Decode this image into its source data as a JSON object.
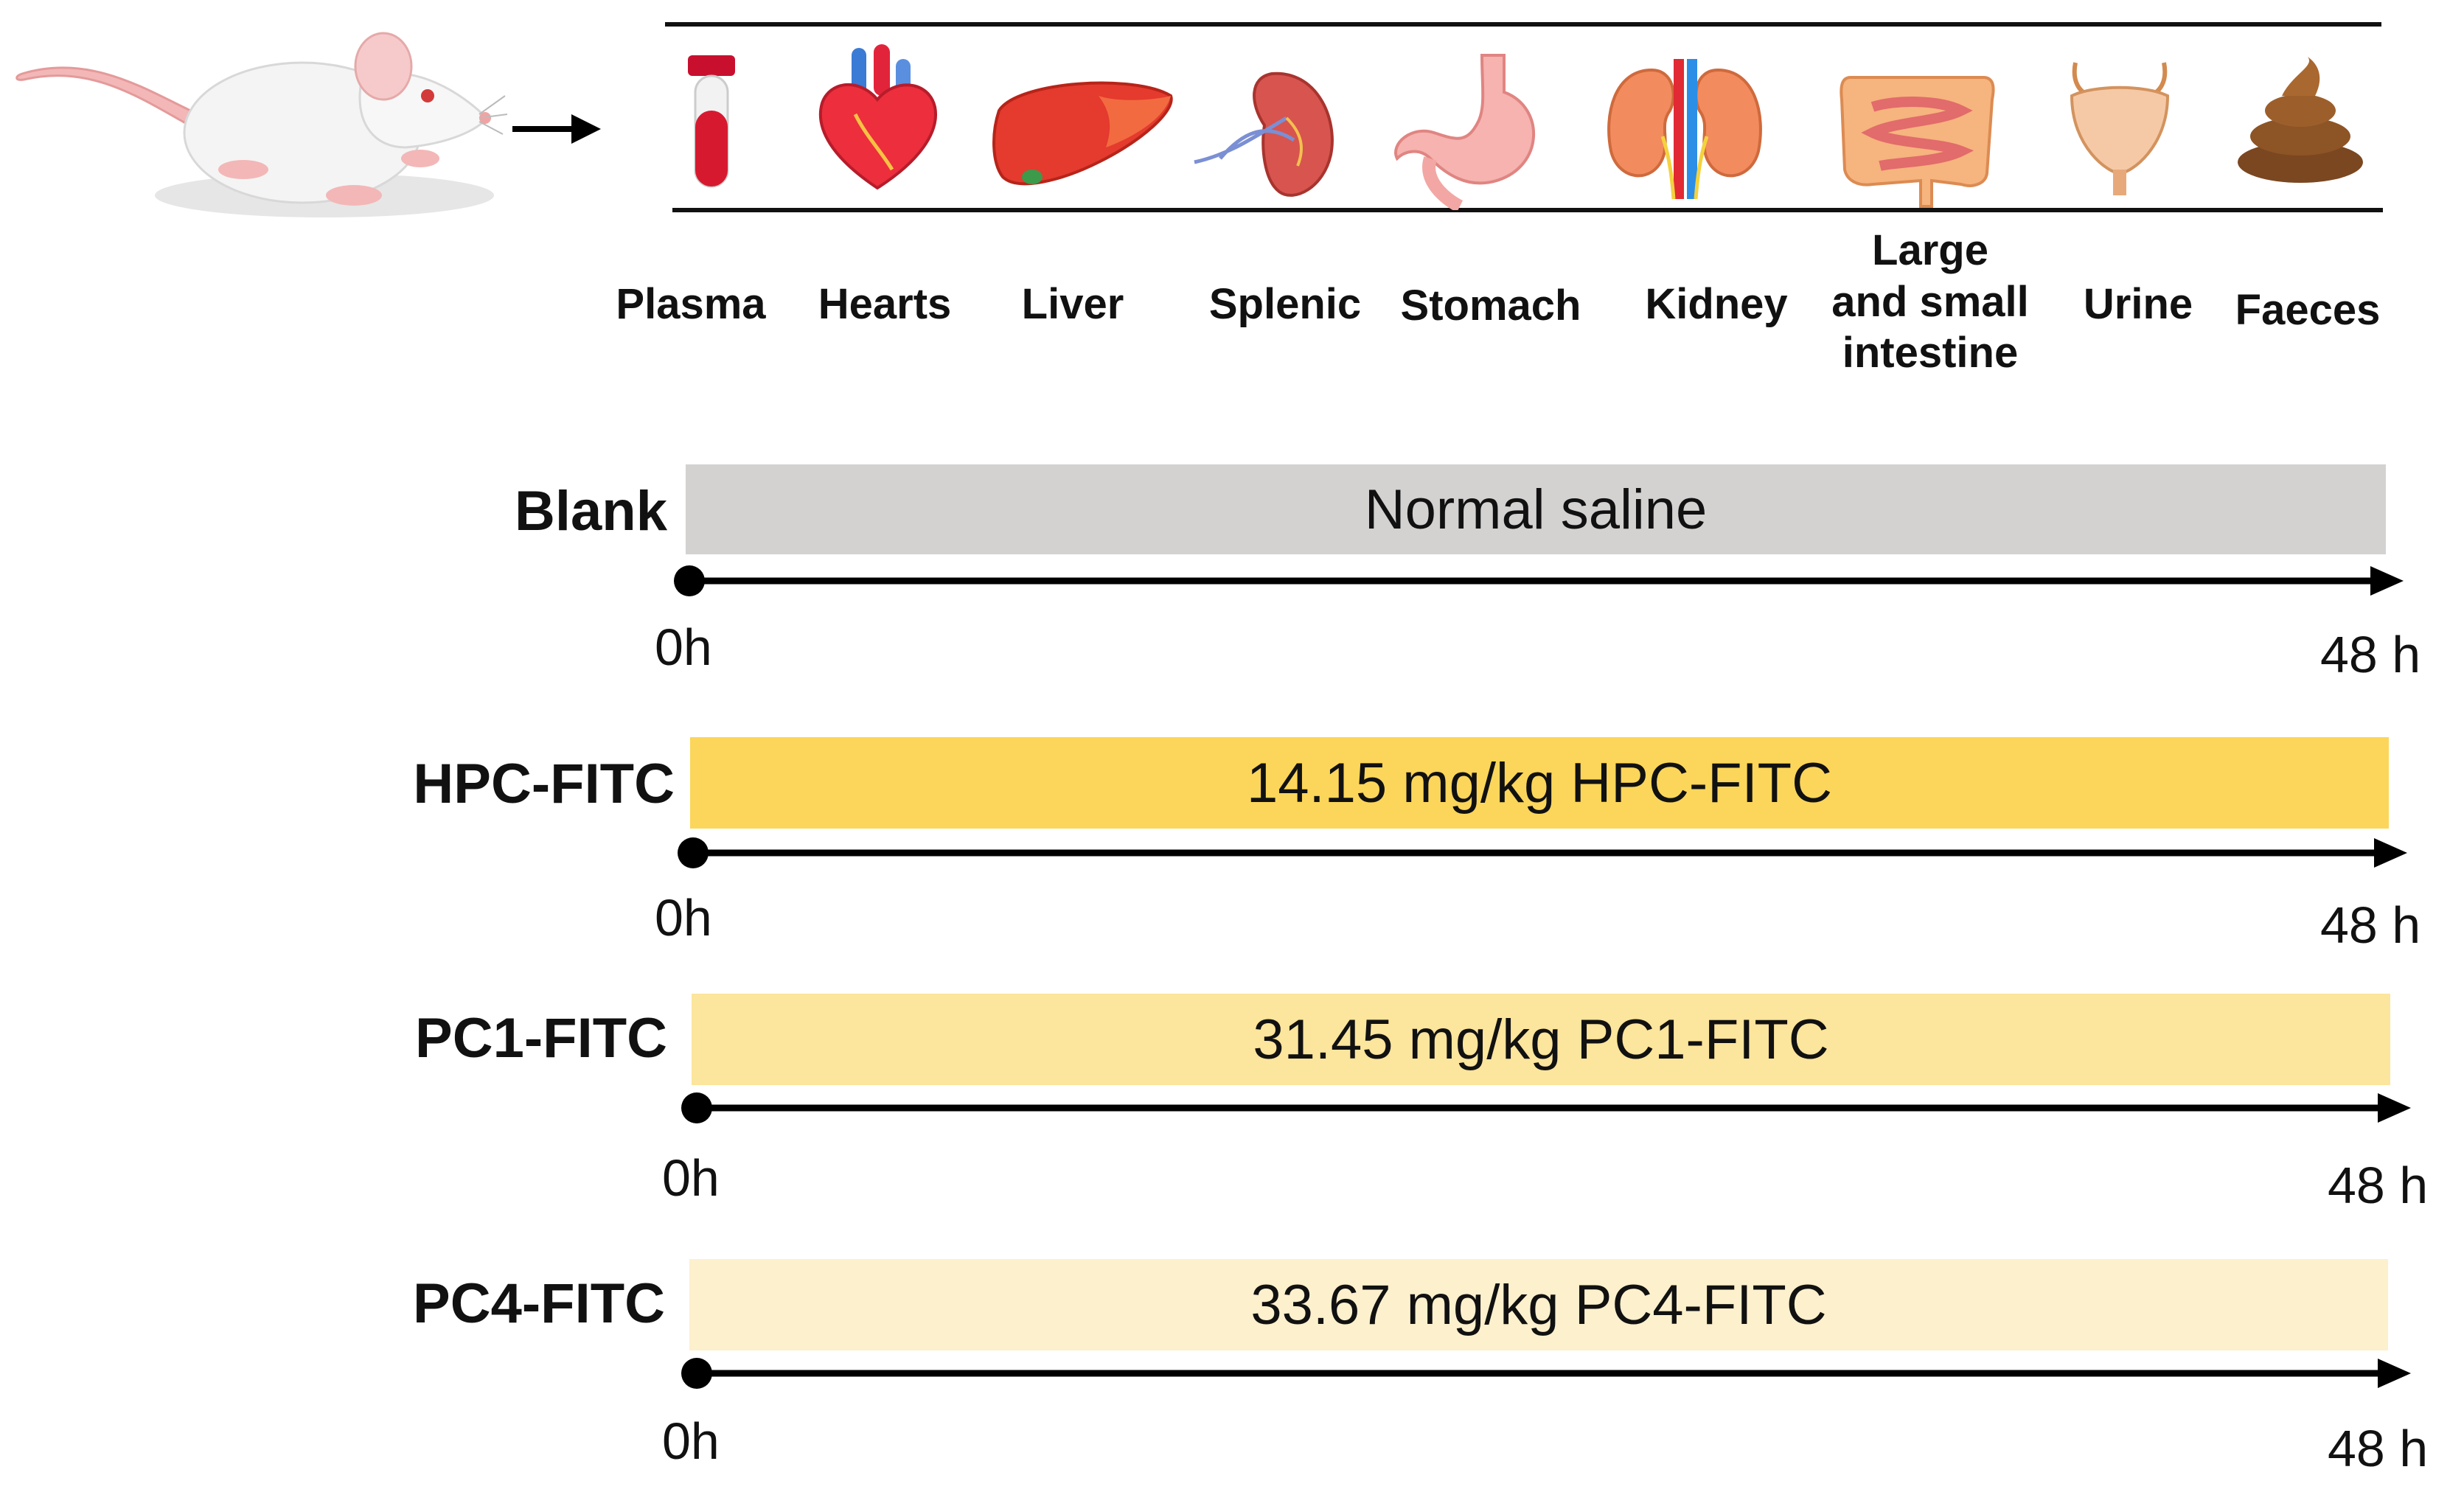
{
  "organs": [
    {
      "label": "Plasma",
      "icon": "blood-tube-icon"
    },
    {
      "label": "Hearts",
      "icon": "heart-icon"
    },
    {
      "label": "Liver",
      "icon": "liver-icon"
    },
    {
      "label": "Splenic",
      "icon": "spleen-icon"
    },
    {
      "label": "Stomach",
      "icon": "stomach-icon"
    },
    {
      "label": "Kidney",
      "icon": "kidney-icon"
    },
    {
      "label_line1": "Large",
      "label_line2": "and small",
      "label_line3": "intestine",
      "icon": "intestine-icon"
    },
    {
      "label": "Urine",
      "icon": "bladder-icon"
    },
    {
      "label": "Faeces",
      "icon": "faeces-icon"
    }
  ],
  "groups": [
    {
      "name": "Blank",
      "treatment": "Normal saline",
      "start": "0h",
      "end": "48 h",
      "color": "#d4d1d1"
    },
    {
      "name": "HPC-FITC",
      "treatment": "14.15 mg/kg HPC-FITC",
      "start": "0h",
      "end": "48 h",
      "color": "#fcd65a"
    },
    {
      "name": "PC1-FITC",
      "treatment": "31.45 mg/kg PC1-FITC",
      "start": "0h",
      "end": "48 h",
      "color": "#fce59c"
    },
    {
      "name": "PC4-FITC",
      "treatment": "33.67 mg/kg PC4-FITC",
      "start": "0h",
      "end": "48 h",
      "color": "#fdf0cd"
    }
  ]
}
